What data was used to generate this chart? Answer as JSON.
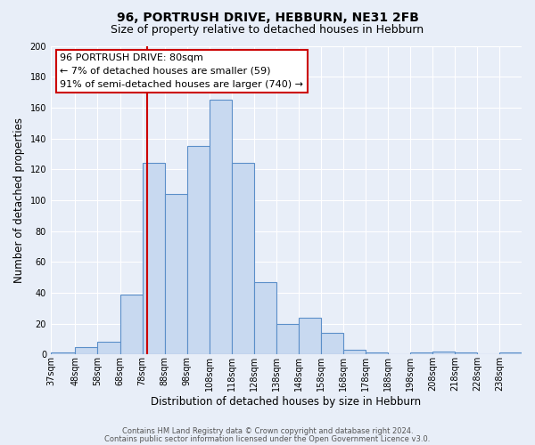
{
  "title": "96, PORTRUSH DRIVE, HEBBURN, NE31 2FB",
  "subtitle": "Size of property relative to detached houses in Hebburn",
  "xlabel": "Distribution of detached houses by size in Hebburn",
  "ylabel": "Number of detached properties",
  "bar_labels": [
    "37sqm",
    "48sqm",
    "58sqm",
    "68sqm",
    "78sqm",
    "88sqm",
    "98sqm",
    "108sqm",
    "118sqm",
    "128sqm",
    "138sqm",
    "148sqm",
    "158sqm",
    "168sqm",
    "178sqm",
    "188sqm",
    "198sqm",
    "208sqm",
    "218sqm",
    "228sqm",
    "238sqm"
  ],
  "bar_values": [
    1,
    5,
    8,
    39,
    124,
    104,
    135,
    165,
    124,
    47,
    20,
    24,
    14,
    3,
    1,
    0,
    1,
    2,
    1,
    0,
    1
  ],
  "bin_edges": [
    37,
    48,
    58,
    68,
    78,
    88,
    98,
    108,
    118,
    128,
    138,
    148,
    158,
    168,
    178,
    188,
    198,
    208,
    218,
    228,
    238,
    248
  ],
  "bar_color": "#c8d9f0",
  "bar_edge_color": "#5b8fc9",
  "vline_x": 80,
  "vline_color": "#cc0000",
  "ylim": [
    0,
    200
  ],
  "yticks": [
    0,
    20,
    40,
    60,
    80,
    100,
    120,
    140,
    160,
    180,
    200
  ],
  "annotation_line1": "96 PORTRUSH DRIVE: 80sqm",
  "annotation_line2": "← 7% of detached houses are smaller (59)",
  "annotation_line3": "91% of semi-detached houses are larger (740) →",
  "annotation_box_edge_color": "#cc0000",
  "annotation_box_facecolor": "#ffffff",
  "footer_line1": "Contains HM Land Registry data © Crown copyright and database right 2024.",
  "footer_line2": "Contains public sector information licensed under the Open Government Licence v3.0.",
  "background_color": "#e8eef8",
  "grid_color": "#ffffff",
  "title_fontsize": 10,
  "subtitle_fontsize": 9,
  "label_fontsize": 8.5,
  "tick_fontsize": 7,
  "annotation_fontsize": 8,
  "footer_fontsize": 6
}
